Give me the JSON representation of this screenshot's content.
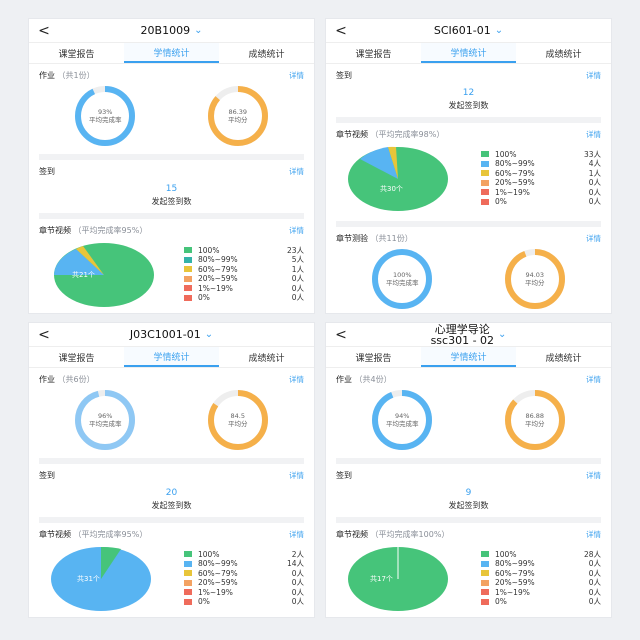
{
  "ui": {
    "tabs": [
      "课堂报告",
      "学情统计",
      "成绩统计"
    ],
    "labels": {
      "homework": "作业",
      "checkin": "签到",
      "video": "章节视频",
      "test": "章节测验",
      "detail": "详情",
      "completion_rate": "平均完成率",
      "avg_score": "平均分",
      "checkin_count": "发起签到数"
    },
    "icons": {
      "back": "back-arrow-icon",
      "dropdown": "chevron-down-icon"
    }
  },
  "legend_ranges": [
    "100%",
    "80%~99%",
    "60%~79%",
    "20%~59%",
    "1%~19%",
    "0%"
  ],
  "colors": {
    "accent": "#3aa0ef",
    "blue": "#58b4f2",
    "orange": "#f5b04a",
    "green": "#46c47a",
    "teal": "#34b3a8",
    "yellow": "#e8c53a",
    "lightorange": "#f3a262",
    "red": "#ef6b5b",
    "gray_track": "#eeeeee"
  },
  "panels": [
    {
      "title": "20B1009",
      "homework": {
        "count": "（共1份）",
        "completion": "93%",
        "avg": "86.39"
      },
      "checkin": {
        "value": "15"
      },
      "video": {
        "rate": "（平均完成率95%）",
        "center": "共21个",
        "counts": [
          "23人",
          "5人",
          "1人",
          "0人",
          "0人",
          "0人"
        ]
      }
    },
    {
      "title": "SCI601-01",
      "checkin": {
        "value": "12"
      },
      "video": {
        "rate": "（平均完成率98%）",
        "center": "共30个",
        "counts": [
          "33人",
          "4人",
          "1人",
          "0人",
          "0人",
          "0人"
        ]
      },
      "test": {
        "count": "（共11份）",
        "completion": "100%",
        "avg": "94.03"
      }
    },
    {
      "title": "J03C1001-01",
      "homework": {
        "count": "（共6份）",
        "completion": "96%",
        "avg": "84.5"
      },
      "checkin": {
        "value": "20"
      },
      "video": {
        "rate": "（平均完成率95%）",
        "center": "共31个",
        "counts": [
          "2人",
          "14人",
          "0人",
          "0人",
          "0人",
          "0人"
        ]
      }
    },
    {
      "title": "心理学导论\nssc301 - 02",
      "homework": {
        "count": "（共4份）",
        "completion": "94%",
        "avg": "86.88"
      },
      "checkin": {
        "value": "9"
      },
      "video": {
        "rate": "（平均完成率100%）",
        "center": "共17个",
        "counts": [
          "28人",
          "0人",
          "0人",
          "0人",
          "0人",
          "0人"
        ]
      }
    }
  ]
}
